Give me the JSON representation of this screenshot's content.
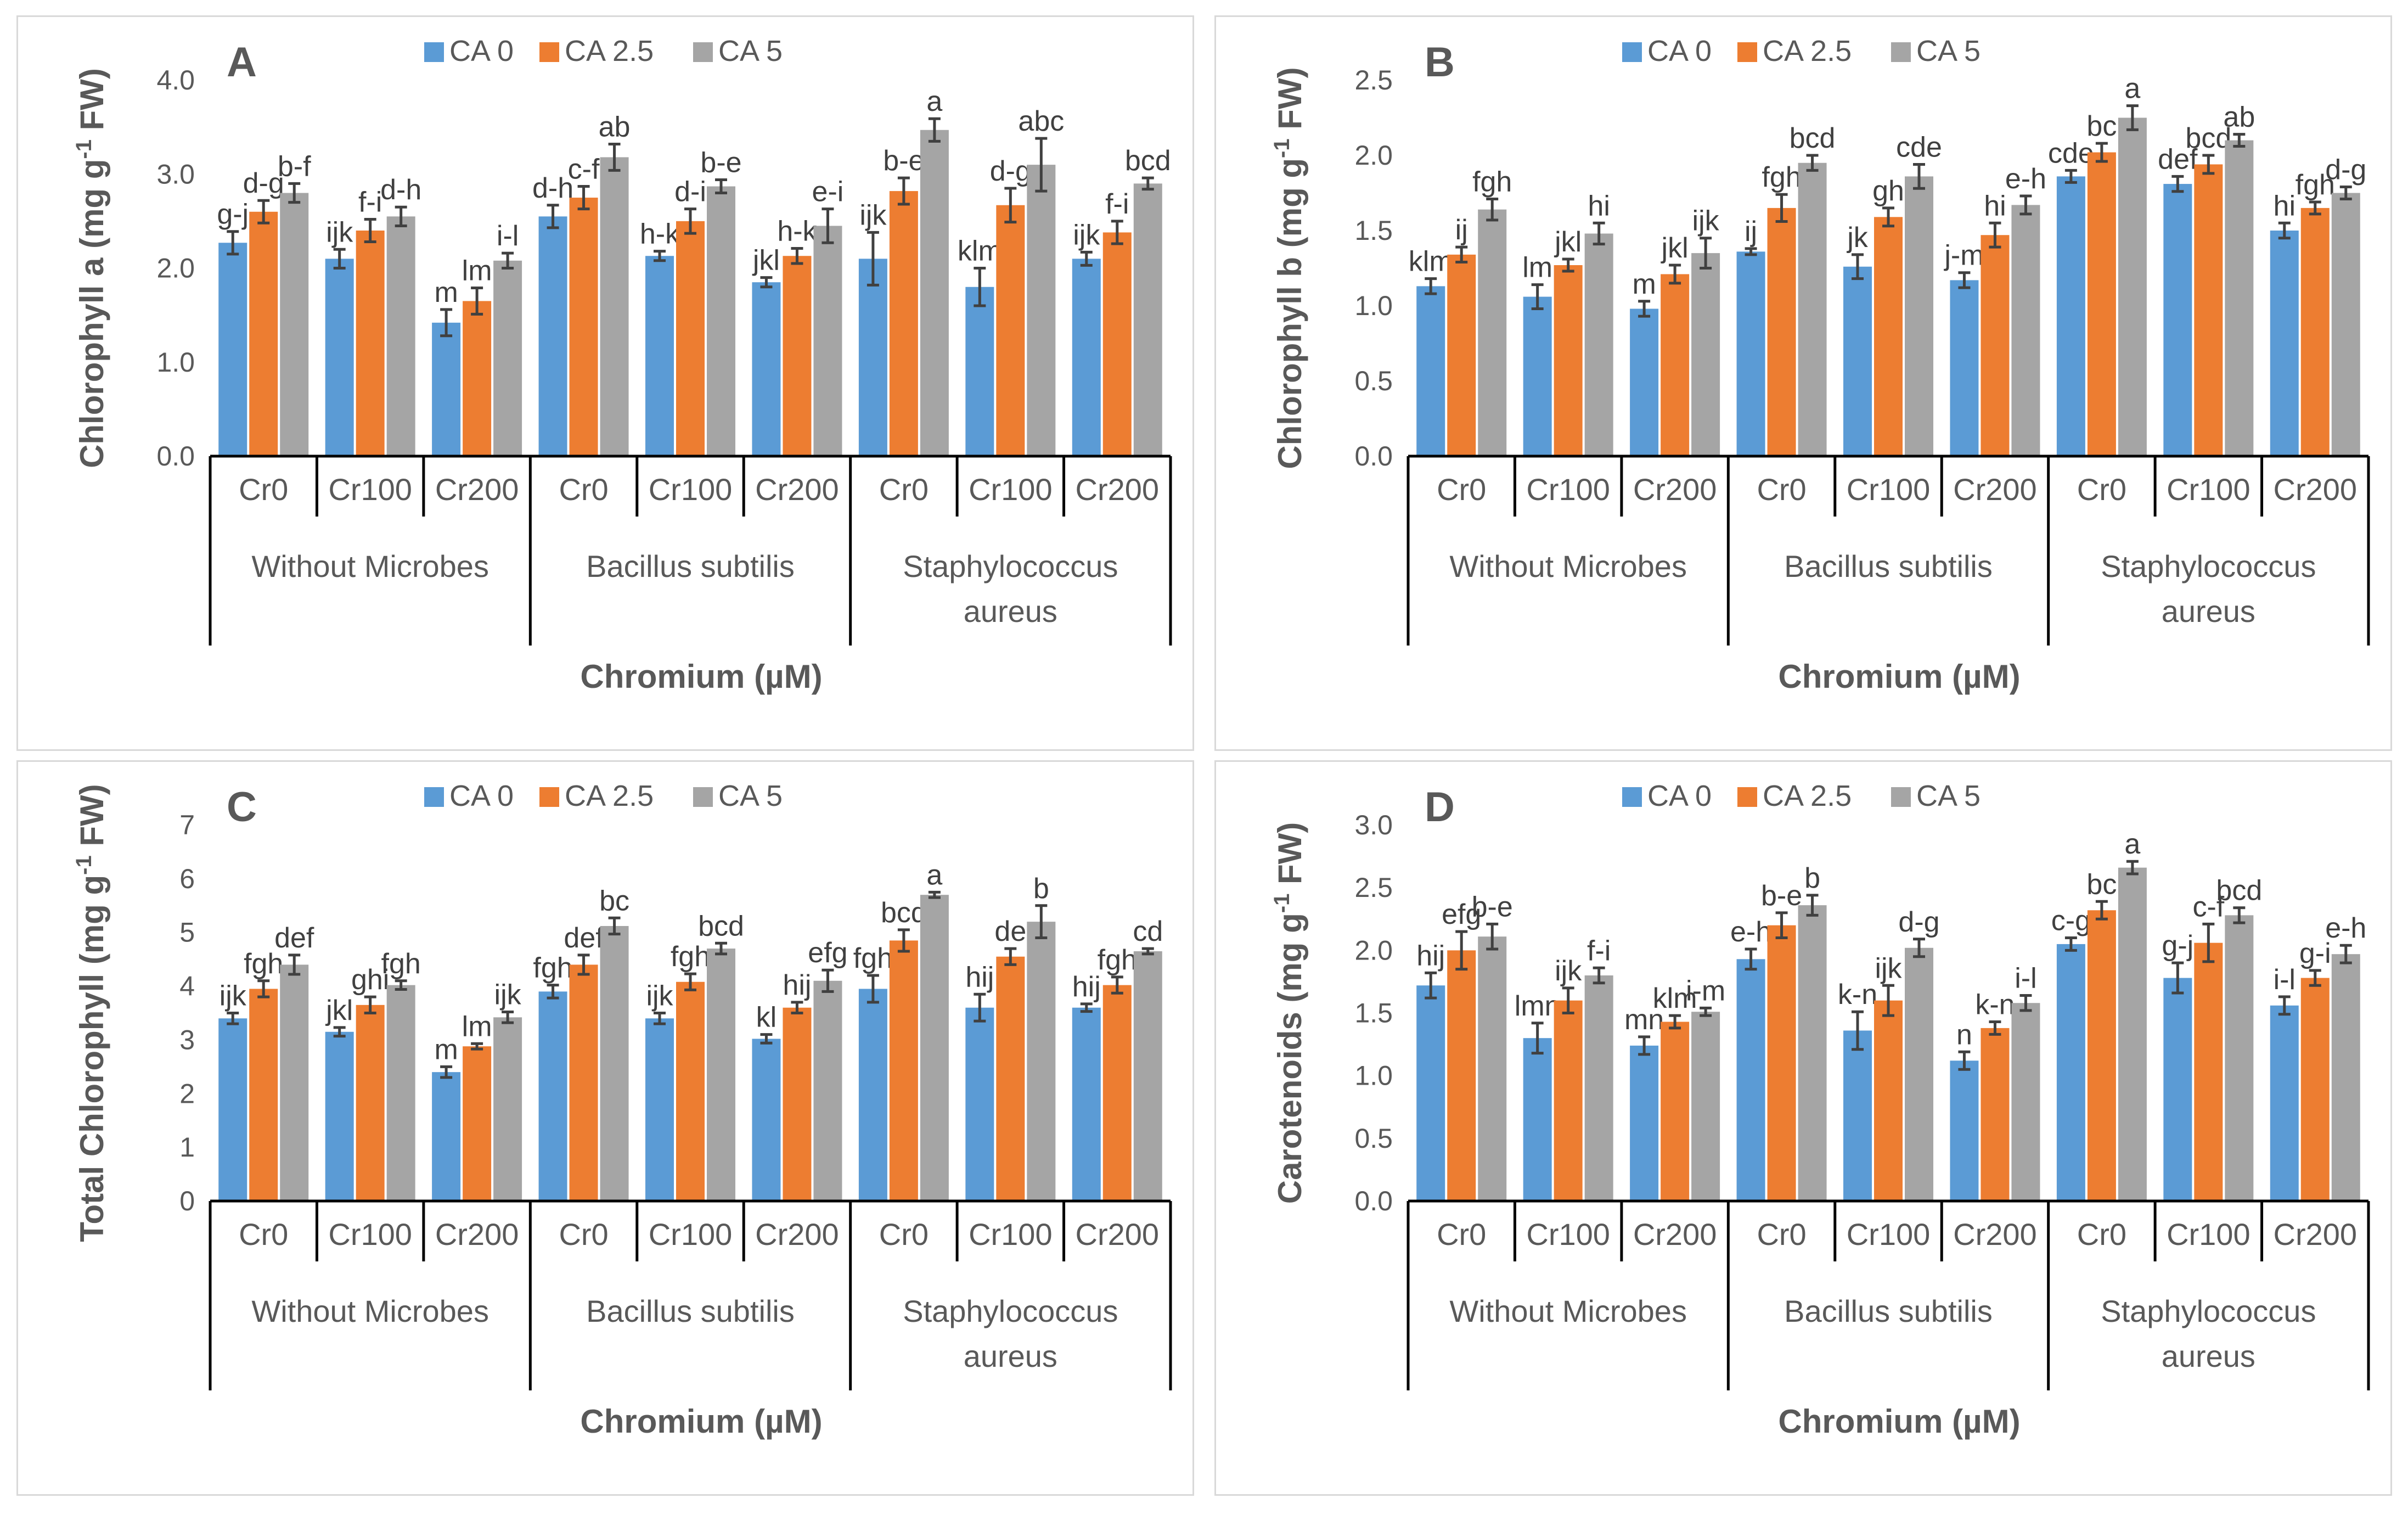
{
  "legend": [
    "CA 0",
    "CA 2.5",
    "CA 5"
  ],
  "colors": {
    "CA 0": "#5b9bd5",
    "CA 2.5": "#ed7d31",
    "CA 5": "#a5a5a5"
  },
  "groups": [
    "Without Microbes",
    "Bacillus subtilis",
    "Staphylococcus aureus"
  ],
  "chromium_levels": [
    "Cr0",
    "Cr100",
    "Cr200"
  ],
  "chart_data": [
    {
      "type": "bar",
      "panel": "A",
      "ylabel": "Chlorophyll a (mg g-1 FW)",
      "ylabel_parts": [
        "Chlorophyll a (mg g",
        "-1",
        " FW)"
      ],
      "xlabel": "Chromium (µM)",
      "ylim": [
        0,
        4.0
      ],
      "yticks": [
        "0.0",
        "1.0",
        "2.0",
        "3.0",
        "4.0"
      ],
      "ytick_values": [
        0,
        1,
        2,
        3,
        4
      ],
      "categories": [
        "Cr0",
        "Cr100",
        "Cr200",
        "Cr0",
        "Cr100",
        "Cr200",
        "Cr0",
        "Cr100",
        "Cr200"
      ],
      "series": [
        {
          "name": "CA 0",
          "values": [
            2.27,
            2.1,
            1.42,
            2.55,
            2.13,
            1.85,
            2.1,
            1.8,
            2.1
          ],
          "errors": [
            0.12,
            0.1,
            0.14,
            0.12,
            0.05,
            0.05,
            0.28,
            0.2,
            0.07
          ],
          "labels": [
            "g-j",
            "ijk",
            "m",
            "d-h",
            "h-k",
            "jkl",
            "ijk",
            "klm",
            "ijk"
          ]
        },
        {
          "name": "CA 2.5",
          "values": [
            2.6,
            2.4,
            1.65,
            2.75,
            2.5,
            2.13,
            2.82,
            2.67,
            2.38
          ],
          "errors": [
            0.12,
            0.12,
            0.14,
            0.12,
            0.13,
            0.08,
            0.14,
            0.18,
            0.12
          ],
          "labels": [
            "d-g",
            "f-i",
            "lm",
            "c-f",
            "d-i",
            "h-k",
            "b-e",
            "d-g",
            "f-i"
          ]
        },
        {
          "name": "CA 5",
          "values": [
            2.8,
            2.55,
            2.08,
            3.18,
            2.87,
            2.45,
            3.47,
            3.1,
            2.9
          ],
          "errors": [
            0.1,
            0.1,
            0.08,
            0.14,
            0.07,
            0.18,
            0.12,
            0.28,
            0.06
          ],
          "labels": [
            "b-f",
            "d-h",
            "i-l",
            "ab",
            "b-e",
            "e-i",
            "a",
            "abc",
            "bcd"
          ]
        }
      ]
    },
    {
      "type": "bar",
      "panel": "B",
      "ylabel": "Chlorophyll b (mg g-1 FW)",
      "ylabel_parts": [
        "Chlorophyll b (mg g",
        "-1",
        " FW)"
      ],
      "xlabel": "Chromium (µM)",
      "ylim": [
        0,
        2.5
      ],
      "yticks": [
        "0.0",
        "0.5",
        "1.0",
        "1.5",
        "2.0",
        "2.5"
      ],
      "ytick_values": [
        0,
        0.5,
        1.0,
        1.5,
        2.0,
        2.5
      ],
      "categories": [
        "Cr0",
        "Cr100",
        "Cr200",
        "Cr0",
        "Cr100",
        "Cr200",
        "Cr0",
        "Cr100",
        "Cr200"
      ],
      "series": [
        {
          "name": "CA 0",
          "values": [
            1.13,
            1.06,
            0.98,
            1.36,
            1.26,
            1.17,
            1.86,
            1.81,
            1.5
          ],
          "errors": [
            0.05,
            0.08,
            0.05,
            0.02,
            0.08,
            0.05,
            0.04,
            0.05,
            0.05
          ],
          "labels": [
            "klm",
            "lm",
            "m",
            "ij",
            "jk",
            "j-m",
            "cde",
            "def",
            "hi"
          ]
        },
        {
          "name": "CA 2.5",
          "values": [
            1.34,
            1.27,
            1.21,
            1.65,
            1.59,
            1.47,
            2.02,
            1.94,
            1.65
          ],
          "errors": [
            0.05,
            0.04,
            0.06,
            0.09,
            0.06,
            0.08,
            0.06,
            0.06,
            0.04
          ],
          "labels": [
            "ij",
            "jkl",
            "jkl",
            "fgh",
            "gh",
            "hi",
            "bc",
            "bcd",
            "fgh"
          ]
        },
        {
          "name": "CA 5",
          "values": [
            1.64,
            1.48,
            1.35,
            1.95,
            1.86,
            1.67,
            2.25,
            2.1,
            1.75
          ],
          "errors": [
            0.07,
            0.07,
            0.1,
            0.05,
            0.08,
            0.06,
            0.08,
            0.04,
            0.04
          ],
          "labels": [
            "fgh",
            "hi",
            "ijk",
            "bcd",
            "cde",
            "e-h",
            "a",
            "ab",
            "d-g"
          ]
        }
      ]
    },
    {
      "type": "bar",
      "panel": "C",
      "ylabel": "Total Chlorophyll (mg g-1 FW)",
      "ylabel_parts": [
        "Total Chlorophyll (mg g",
        "-1",
        " FW)"
      ],
      "xlabel": "Chromium (µM)",
      "ylim": [
        0,
        7
      ],
      "yticks": [
        "0",
        "1",
        "2",
        "3",
        "4",
        "5",
        "6",
        "7"
      ],
      "ytick_values": [
        0,
        1,
        2,
        3,
        4,
        5,
        6,
        7
      ],
      "categories": [
        "Cr0",
        "Cr100",
        "Cr200",
        "Cr0",
        "Cr100",
        "Cr200",
        "Cr0",
        "Cr100",
        "Cr200"
      ],
      "series": [
        {
          "name": "CA 0",
          "values": [
            3.4,
            3.15,
            2.4,
            3.9,
            3.4,
            3.02,
            3.95,
            3.6,
            3.6
          ],
          "errors": [
            0.1,
            0.08,
            0.1,
            0.12,
            0.1,
            0.08,
            0.25,
            0.25,
            0.07
          ],
          "labels": [
            "ijk",
            "jkl",
            "m",
            "fgh",
            "ijk",
            "kl",
            "fgh",
            "hij",
            "hij"
          ]
        },
        {
          "name": "CA 2.5",
          "values": [
            3.95,
            3.65,
            2.88,
            4.4,
            4.08,
            3.6,
            4.85,
            4.55,
            4.02
          ],
          "errors": [
            0.15,
            0.15,
            0.05,
            0.18,
            0.15,
            0.1,
            0.2,
            0.15,
            0.15
          ],
          "labels": [
            "fgh",
            "ghi",
            "lm",
            "def",
            "fgh",
            "hij",
            "bcd",
            "de",
            "fgh"
          ]
        },
        {
          "name": "CA 5",
          "values": [
            4.4,
            4.02,
            3.42,
            5.12,
            4.7,
            4.1,
            5.7,
            5.2,
            4.65
          ],
          "errors": [
            0.18,
            0.08,
            0.1,
            0.15,
            0.1,
            0.2,
            0.05,
            0.3,
            0.05
          ],
          "labels": [
            "def",
            "fgh",
            "ijk",
            "bc",
            "bcd",
            "efg",
            "a",
            "b",
            "cd"
          ]
        }
      ]
    },
    {
      "type": "bar",
      "panel": "D",
      "ylabel": "Carotenoids (mg g-1 FW)",
      "ylabel_parts": [
        "Carotenoids (mg g",
        "-1",
        " FW)"
      ],
      "xlabel": "Chromium (µM)",
      "ylim": [
        0,
        3.0
      ],
      "yticks": [
        "0.0",
        "0.5",
        "1.0",
        "1.5",
        "2.0",
        "2.5",
        "3.0"
      ],
      "ytick_values": [
        0,
        0.5,
        1.0,
        1.5,
        2.0,
        2.5,
        3.0
      ],
      "categories": [
        "Cr0",
        "Cr100",
        "Cr200",
        "Cr0",
        "Cr100",
        "Cr200",
        "Cr0",
        "Cr100",
        "Cr200"
      ],
      "series": [
        {
          "name": "CA 0",
          "values": [
            1.72,
            1.3,
            1.24,
            1.93,
            1.36,
            1.12,
            2.05,
            1.78,
            1.56
          ],
          "errors": [
            0.1,
            0.12,
            0.07,
            0.08,
            0.15,
            0.07,
            0.05,
            0.12,
            0.07
          ],
          "labels": [
            "hij",
            "lmn",
            "mn",
            "e-h",
            "k-n",
            "n",
            "c-g",
            "g-j",
            "i-l"
          ]
        },
        {
          "name": "CA 2.5",
          "values": [
            2.0,
            1.6,
            1.43,
            2.2,
            1.6,
            1.38,
            2.32,
            2.06,
            1.78
          ],
          "errors": [
            0.15,
            0.1,
            0.05,
            0.1,
            0.12,
            0.05,
            0.07,
            0.15,
            0.06
          ],
          "labels": [
            "efg",
            "ijk",
            "klm",
            "b-e",
            "ijk",
            "k-n",
            "bc",
            "c-f",
            "g-i"
          ]
        },
        {
          "name": "CA 5",
          "values": [
            2.11,
            1.8,
            1.51,
            2.36,
            2.02,
            1.58,
            2.66,
            2.28,
            1.97
          ],
          "errors": [
            0.1,
            0.06,
            0.03,
            0.08,
            0.07,
            0.06,
            0.05,
            0.06,
            0.07
          ],
          "labels": [
            "b-e",
            "f-i",
            "i-m",
            "b",
            "d-g",
            "i-l",
            "a",
            "bcd",
            "e-h"
          ]
        }
      ]
    }
  ]
}
